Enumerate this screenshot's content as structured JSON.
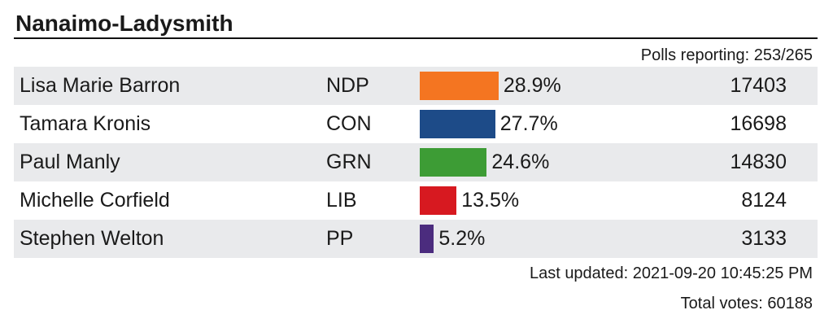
{
  "riding": "Nanaimo-Ladysmith",
  "polls_label": "Polls reporting: 253/265",
  "updated_label": "Last updated: 2021-09-20 10:45:25 PM",
  "total_label": "Total votes: 60188",
  "bar_max_percent": 100,
  "chart_data": {
    "type": "bar",
    "title": "Nanaimo-Ladysmith",
    "categories": [
      "Lisa Marie Barron",
      "Tamara Kronis",
      "Paul Manly",
      "Michelle Corfield",
      "Stephen Welton"
    ],
    "parties": [
      "NDP",
      "CON",
      "GRN",
      "LIB",
      "PP"
    ],
    "values": [
      28.9,
      27.7,
      24.6,
      13.5,
      5.2
    ],
    "value_labels": [
      "28.9%",
      "27.7%",
      "24.6%",
      "13.5%",
      "5.2%"
    ],
    "votes": [
      17403,
      16698,
      14830,
      8124,
      3133
    ],
    "colors": [
      "#f47521",
      "#1d4b88",
      "#3d9c35",
      "#d71920",
      "#4b2c7e"
    ]
  }
}
